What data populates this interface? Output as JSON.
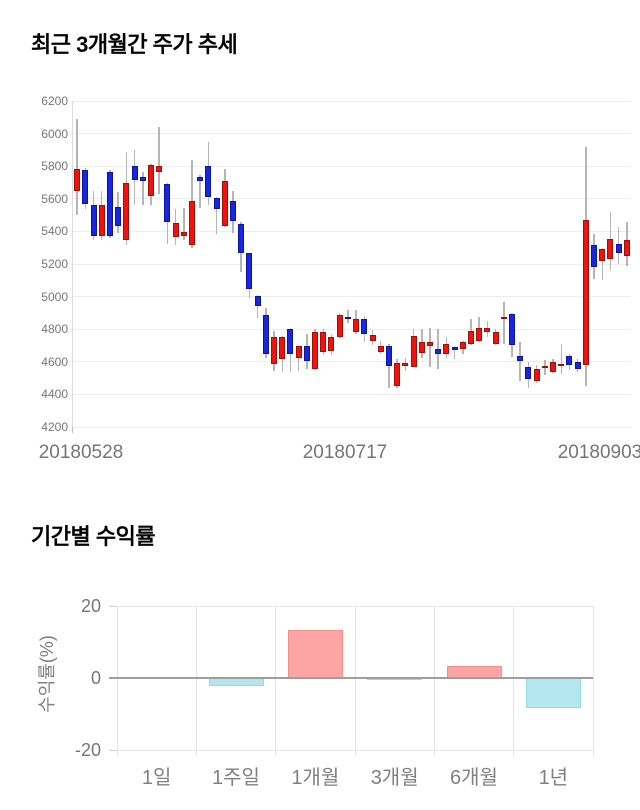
{
  "page": {
    "background": "#ffffff",
    "title_color": "#050505"
  },
  "chart_data": [
    {
      "type": "candlestick",
      "title": "최근 3개월간 주가 추세",
      "x_tick_labels": [
        "20180528",
        "20180717",
        "20180903"
      ],
      "y_ticks": [
        6200,
        6000,
        5800,
        5600,
        5400,
        5200,
        5000,
        4800,
        4600,
        4400,
        4200
      ],
      "ylim": [
        4200,
        6200
      ],
      "grid": true,
      "legend": "none",
      "axis_text_color": "#757575",
      "up_color": "#f2110c",
      "up_border": "#9e100a",
      "down_color": "#1626e4",
      "down_border": "#0e1694",
      "wick_color": "#b5b5b5",
      "candles_ohlc": [
        [
          5650,
          6090,
          5500,
          5785
        ],
        [
          5775,
          5790,
          5540,
          5565
        ],
        [
          5565,
          5650,
          5350,
          5370
        ],
        [
          5370,
          5645,
          5350,
          5565
        ],
        [
          5765,
          5775,
          5360,
          5370
        ],
        [
          5550,
          5640,
          5390,
          5430
        ],
        [
          5345,
          5890,
          5315,
          5700
        ],
        [
          5800,
          5900,
          5560,
          5715
        ],
        [
          5735,
          5765,
          5560,
          5710
        ],
        [
          5620,
          5815,
          5565,
          5805
        ],
        [
          5765,
          6040,
          5630,
          5800
        ],
        [
          5690,
          5700,
          5325,
          5455
        ],
        [
          5365,
          5540,
          5315,
          5450
        ],
        [
          5370,
          5545,
          5345,
          5395
        ],
        [
          5315,
          5840,
          5300,
          5585
        ],
        [
          5735,
          5745,
          5545,
          5710
        ],
        [
          5800,
          5950,
          5565,
          5610
        ],
        [
          5605,
          5610,
          5385,
          5535
        ],
        [
          5435,
          5780,
          5425,
          5710
        ],
        [
          5585,
          5650,
          5390,
          5465
        ],
        [
          5445,
          5460,
          5150,
          5270
        ],
        [
          5265,
          5270,
          4990,
          5045
        ],
        [
          5005,
          5010,
          4870,
          4945
        ],
        [
          4890,
          4930,
          4625,
          4645
        ],
        [
          4585,
          4790,
          4545,
          4750
        ],
        [
          4620,
          4760,
          4535,
          4750
        ],
        [
          4800,
          4810,
          4535,
          4645
        ],
        [
          4625,
          4700,
          4545,
          4695
        ],
        [
          4695,
          4770,
          4555,
          4605
        ],
        [
          4555,
          4800,
          4550,
          4780
        ],
        [
          4660,
          4800,
          4640,
          4780
        ],
        [
          4665,
          4770,
          4640,
          4750
        ],
        [
          4750,
          4900,
          4740,
          4885
        ],
        [
          4875,
          4920,
          4840,
          4870
        ],
        [
          4780,
          4920,
          4770,
          4860
        ],
        [
          4860,
          4880,
          4720,
          4770
        ],
        [
          4730,
          4795,
          4700,
          4765
        ],
        [
          4663,
          4730,
          4650,
          4698
        ],
        [
          4700,
          4710,
          4440,
          4575
        ],
        [
          4450,
          4620,
          4440,
          4590
        ],
        [
          4585,
          4625,
          4545,
          4590
        ],
        [
          4570,
          4800,
          4565,
          4760
        ],
        [
          4655,
          4800,
          4625,
          4720
        ],
        [
          4695,
          4810,
          4570,
          4720
        ],
        [
          4680,
          4800,
          4555,
          4645
        ],
        [
          4650,
          4750,
          4625,
          4710
        ],
        [
          4690,
          4700,
          4620,
          4670
        ],
        [
          4680,
          4730,
          4650,
          4720
        ],
        [
          4710,
          4865,
          4700,
          4790
        ],
        [
          4725,
          4875,
          4720,
          4805
        ],
        [
          4785,
          4850,
          4750,
          4810
        ],
        [
          4710,
          4800,
          4700,
          4780
        ],
        [
          4872,
          4965,
          4710,
          4875
        ],
        [
          4895,
          4900,
          4630,
          4700
        ],
        [
          4635,
          4720,
          4480,
          4605
        ],
        [
          4570,
          4600,
          4440,
          4495
        ],
        [
          4485,
          4580,
          4470,
          4555
        ],
        [
          4570,
          4610,
          4520,
          4575
        ],
        [
          4540,
          4620,
          4530,
          4600
        ],
        [
          4583,
          4710,
          4525,
          4587
        ],
        [
          4635,
          4650,
          4550,
          4580
        ],
        [
          4600,
          4620,
          4540,
          4555
        ],
        [
          4580,
          5920,
          4450,
          5470
        ],
        [
          5315,
          5385,
          5110,
          5180
        ],
        [
          5220,
          5300,
          5100,
          5295
        ],
        [
          5230,
          5520,
          5165,
          5355
        ],
        [
          5325,
          5430,
          5200,
          5265
        ],
        [
          5250,
          5460,
          5190,
          5345
        ]
      ]
    },
    {
      "type": "bar",
      "title": "기간별 수익률",
      "ylabel": "수익률(%)",
      "categories": [
        "1일",
        "1주일",
        "1개월",
        "3개월",
        "6개월",
        "1년"
      ],
      "values": [
        0,
        -2.3,
        13.3,
        -0.6,
        3.4,
        -8.3
      ],
      "y_ticks": [
        20,
        0,
        -20
      ],
      "ylim": [
        -20,
        20
      ],
      "grid": true,
      "legend": "none",
      "axis_text_color": "#808080",
      "positive_color": "#fda5a5",
      "positive_border": "#f28f8f",
      "negative_color": "#b4e6f0",
      "negative_border": "#96d9e7",
      "zero_line_color": "#9e9e9e"
    }
  ]
}
